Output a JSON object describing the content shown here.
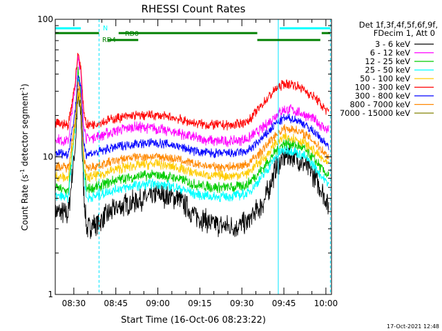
{
  "chart_data": {
    "type": "line",
    "title": "RHESSI Count Rates",
    "xlabel": "Start Time (16-Oct-06 08:23:22)",
    "ylabel": "Count Rate (s",
    "ylabel_sup": "-1",
    "ylabel_mid": " detector segment",
    "ylabel_sup2": "-1",
    "ylabel_end": ")",
    "yscale": "log",
    "ylim": [
      1,
      100
    ],
    "xlim_minutes": [
      503.37,
      602.0
    ],
    "x_ticks": [
      {
        "label": "08:30",
        "t": 510
      },
      {
        "label": "08:45",
        "t": 525
      },
      {
        "label": "09:00",
        "t": 540
      },
      {
        "label": "09:15",
        "t": 555
      },
      {
        "label": "09:30",
        "t": 570
      },
      {
        "label": "09:45",
        "t": 585
      },
      {
        "label": "10:00",
        "t": 600
      }
    ],
    "y_tick_labels": [
      {
        "label": "100",
        "v": 100
      },
      {
        "label": "10",
        "v": 10
      },
      {
        "label": "1",
        "v": 1
      }
    ],
    "legend": {
      "header1": "Det 1f,3f,4f,5f,6f,9f,",
      "header2": "FDecim 1, Att 0",
      "placement": "right"
    },
    "series": [
      {
        "name": "3 - 6 keV",
        "color": "#000000",
        "points": [
          [
            503.4,
            4.0
          ],
          [
            508,
            3.8
          ],
          [
            510.5,
            12
          ],
          [
            511.5,
            27
          ],
          [
            512.5,
            20
          ],
          [
            513.5,
            6
          ],
          [
            514.5,
            3.0
          ],
          [
            518,
            3.3
          ],
          [
            525,
            4.2
          ],
          [
            532,
            4.8
          ],
          [
            540,
            5.3
          ],
          [
            547,
            5.0
          ],
          [
            553,
            3.8
          ],
          [
            560,
            3.2
          ],
          [
            567,
            3.1
          ],
          [
            572,
            3.3
          ],
          [
            578,
            4.8
          ],
          [
            582,
            8.0
          ],
          [
            585,
            10.0
          ],
          [
            588,
            10.2
          ],
          [
            592,
            9.0
          ],
          [
            596,
            7.2
          ],
          [
            599,
            5.5
          ],
          [
            601,
            4.3
          ]
        ]
      },
      {
        "name": "6 - 12 keV",
        "color": "#ff00ff",
        "points": [
          [
            503.4,
            13.5
          ],
          [
            508,
            13.0
          ],
          [
            510.5,
            32
          ],
          [
            511.5,
            55
          ],
          [
            512.5,
            40
          ],
          [
            513.5,
            18
          ],
          [
            514.5,
            13.5
          ],
          [
            518,
            14.0
          ],
          [
            525,
            15.5
          ],
          [
            532,
            16.5
          ],
          [
            540,
            16.0
          ],
          [
            547,
            15.0
          ],
          [
            553,
            13.8
          ],
          [
            560,
            13.0
          ],
          [
            567,
            13.0
          ],
          [
            572,
            13.5
          ],
          [
            578,
            16.5
          ],
          [
            582,
            20
          ],
          [
            585,
            22
          ],
          [
            588,
            22
          ],
          [
            592,
            20.5
          ],
          [
            596,
            18.5
          ],
          [
            599,
            16.5
          ],
          [
            601,
            15.5
          ]
        ]
      },
      {
        "name": "12 - 25 keV",
        "color": "#00cc00",
        "points": [
          [
            503.4,
            6.0
          ],
          [
            508,
            5.6
          ],
          [
            510.5,
            18
          ],
          [
            511.5,
            42
          ],
          [
            512.5,
            30
          ],
          [
            513.5,
            9
          ],
          [
            514.5,
            5.8
          ],
          [
            518,
            6.0
          ],
          [
            525,
            6.8
          ],
          [
            532,
            7.2
          ],
          [
            540,
            7.4
          ],
          [
            547,
            7.0
          ],
          [
            553,
            6.3
          ],
          [
            560,
            6.0
          ],
          [
            567,
            6.0
          ],
          [
            572,
            6.3
          ],
          [
            578,
            8.5
          ],
          [
            582,
            11
          ],
          [
            585,
            12.5
          ],
          [
            588,
            12.5
          ],
          [
            592,
            11.5
          ],
          [
            596,
            9.5
          ],
          [
            599,
            8.0
          ],
          [
            601,
            7.2
          ]
        ]
      },
      {
        "name": "25 - 50 keV",
        "color": "#00ffff",
        "points": [
          [
            503.4,
            5.2
          ],
          [
            508,
            5.0
          ],
          [
            510.5,
            16
          ],
          [
            511.5,
            38
          ],
          [
            512.5,
            27
          ],
          [
            513.5,
            8
          ],
          [
            514.5,
            5.0
          ],
          [
            518,
            5.2
          ],
          [
            525,
            5.8
          ],
          [
            532,
            6.2
          ],
          [
            540,
            6.4
          ],
          [
            547,
            6.0
          ],
          [
            553,
            5.4
          ],
          [
            560,
            5.1
          ],
          [
            567,
            5.2
          ],
          [
            572,
            5.4
          ],
          [
            578,
            7.5
          ],
          [
            582,
            10
          ],
          [
            585,
            11.2
          ],
          [
            588,
            11.2
          ],
          [
            592,
            10.2
          ],
          [
            596,
            8.5
          ],
          [
            599,
            7.0
          ],
          [
            601,
            6.3
          ]
        ]
      },
      {
        "name": "50 - 100 keV",
        "color": "#ffcc00",
        "points": [
          [
            503.4,
            7.3
          ],
          [
            508,
            7.0
          ],
          [
            510.5,
            17
          ],
          [
            511.5,
            30
          ],
          [
            512.5,
            24
          ],
          [
            513.5,
            9
          ],
          [
            514.5,
            7.0
          ],
          [
            518,
            7.3
          ],
          [
            525,
            8.1
          ],
          [
            532,
            8.7
          ],
          [
            540,
            8.9
          ],
          [
            547,
            8.4
          ],
          [
            553,
            7.6
          ],
          [
            560,
            7.3
          ],
          [
            567,
            7.3
          ],
          [
            572,
            7.6
          ],
          [
            578,
            9.8
          ],
          [
            582,
            12.5
          ],
          [
            585,
            13.8
          ],
          [
            588,
            13.8
          ],
          [
            592,
            12.8
          ],
          [
            596,
            11
          ],
          [
            599,
            9.5
          ],
          [
            601,
            8.6
          ]
        ]
      },
      {
        "name": "100 - 300 keV",
        "color": "#ff0000",
        "points": [
          [
            503.4,
            17.5
          ],
          [
            508,
            17.0
          ],
          [
            510.5,
            35
          ],
          [
            511.5,
            58
          ],
          [
            512.5,
            44
          ],
          [
            513.5,
            22
          ],
          [
            514.5,
            17.0
          ],
          [
            518,
            17.5
          ],
          [
            525,
            19.0
          ],
          [
            532,
            20.0
          ],
          [
            540,
            20.0
          ],
          [
            547,
            19.0
          ],
          [
            553,
            17.5
          ],
          [
            560,
            17.0
          ],
          [
            567,
            17.0
          ],
          [
            572,
            18.0
          ],
          [
            578,
            25
          ],
          [
            582,
            31
          ],
          [
            585,
            34
          ],
          [
            588,
            34
          ],
          [
            592,
            31
          ],
          [
            596,
            27
          ],
          [
            599,
            23
          ],
          [
            601,
            21
          ]
        ]
      },
      {
        "name": "300 - 800 keV",
        "color": "#0000ff",
        "points": [
          [
            503.4,
            10.8
          ],
          [
            508,
            10.4
          ],
          [
            510.5,
            22
          ],
          [
            511.5,
            40
          ],
          [
            512.5,
            31
          ],
          [
            513.5,
            13
          ],
          [
            514.5,
            10.4
          ],
          [
            518,
            10.8
          ],
          [
            525,
            11.8
          ],
          [
            532,
            12.5
          ],
          [
            540,
            12.6
          ],
          [
            547,
            12.0
          ],
          [
            553,
            11.0
          ],
          [
            560,
            10.6
          ],
          [
            567,
            10.6
          ],
          [
            572,
            11.0
          ],
          [
            578,
            14.0
          ],
          [
            582,
            17.5
          ],
          [
            585,
            19.0
          ],
          [
            588,
            19.0
          ],
          [
            592,
            17.5
          ],
          [
            596,
            15.0
          ],
          [
            599,
            13.0
          ],
          [
            601,
            12.0
          ]
        ]
      },
      {
        "name": "800 - 7000 keV",
        "color": "#ff8800",
        "points": [
          [
            503.4,
            8.6
          ],
          [
            508,
            8.3
          ],
          [
            510.5,
            19
          ],
          [
            511.5,
            34
          ],
          [
            512.5,
            27
          ],
          [
            513.5,
            10
          ],
          [
            514.5,
            8.3
          ],
          [
            518,
            8.6
          ],
          [
            525,
            9.4
          ],
          [
            532,
            10.0
          ],
          [
            540,
            10.1
          ],
          [
            547,
            9.6
          ],
          [
            553,
            8.8
          ],
          [
            560,
            8.5
          ],
          [
            567,
            8.5
          ],
          [
            572,
            8.8
          ],
          [
            578,
            11.5
          ],
          [
            582,
            14.5
          ],
          [
            585,
            16.0
          ],
          [
            588,
            16.0
          ],
          [
            592,
            14.8
          ],
          [
            596,
            12.8
          ],
          [
            599,
            11.0
          ],
          [
            601,
            10.0
          ]
        ]
      },
      {
        "name": "7000 - 15000 keV",
        "color": "#808000",
        "points": [
          [
            511.0,
            20
          ],
          [
            511.5,
            28
          ],
          [
            512.0,
            25
          ],
          [
            512.5,
            22
          ]
        ]
      }
    ],
    "time_markers": [
      {
        "t": 503.37,
        "style": "solid"
      },
      {
        "t": 519.0,
        "style": "dashed"
      },
      {
        "t": 583.0,
        "style": "solid"
      },
      {
        "t": 601.6,
        "style": "dashed"
      }
    ],
    "flag_bars": [
      {
        "label": "N",
        "color": "#00ffff",
        "row": 0,
        "segments": [
          [
            503.4,
            512.5
          ],
          [
            583.5,
            601.6
          ]
        ]
      },
      {
        "label": "RD0",
        "color": "#008000",
        "row": 1,
        "segments": [
          [
            503.4,
            519.0
          ],
          [
            526.0,
            575.5
          ],
          [
            598.5,
            601.6
          ]
        ]
      },
      {
        "label": "RD4",
        "color": "#008000",
        "row": 2,
        "segments": [
          [
            522.0,
            533.0
          ],
          [
            575.5,
            598.0
          ]
        ]
      }
    ],
    "timestamp": "17-Oct-2021 12:48"
  }
}
